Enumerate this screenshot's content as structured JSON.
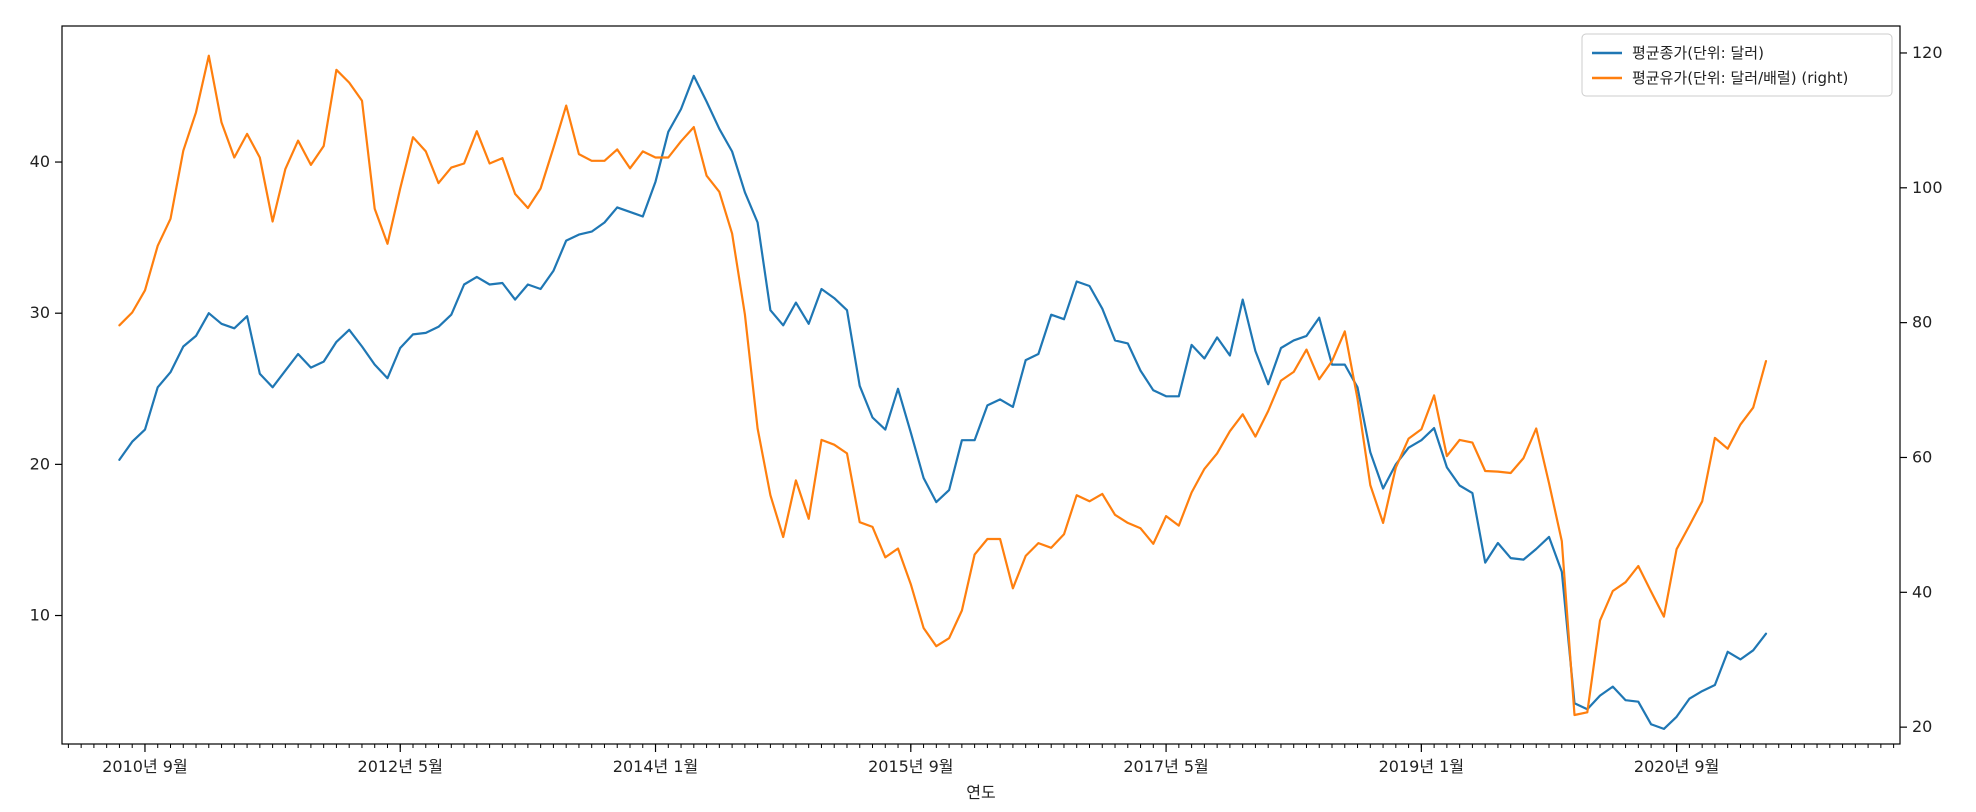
{
  "chart_data": {
    "type": "line",
    "title": "",
    "xlabel": "연도",
    "ylabel_left": "",
    "ylabel_right": "",
    "x_tick_labels": [
      "2010년 9월",
      "2012년 5월",
      "2014년 1월",
      "2015년 9월",
      "2017년 5월",
      "2019년 1월",
      "2020년 9월"
    ],
    "x_tick_periods": [
      2,
      22,
      42,
      62,
      82,
      102,
      122
    ],
    "x_start": "2010년 7월",
    "x_range": [
      -4.5,
      139.5
    ],
    "ylim_left": [
      1.5,
      49.0
    ],
    "ylim_right": [
      17.5,
      124.0
    ],
    "yticks_left": [
      10,
      20,
      30,
      40
    ],
    "yticks_right": [
      20,
      40,
      60,
      80,
      100,
      120
    ],
    "grid": false,
    "legend_position": "top-right",
    "series": [
      {
        "name": "평균종가(단위: 달러)",
        "axis": "left",
        "color": "#1f77b4",
        "values": [
          20.3,
          21.5,
          22.3,
          25.1,
          26.1,
          27.8,
          28.5,
          30.0,
          29.3,
          29.0,
          29.8,
          26.0,
          25.1,
          26.2,
          27.3,
          26.4,
          26.8,
          28.1,
          28.9,
          27.8,
          26.6,
          25.7,
          27.7,
          28.6,
          28.7,
          29.1,
          29.9,
          31.9,
          32.4,
          31.9,
          32.0,
          30.9,
          31.9,
          31.6,
          32.8,
          34.8,
          35.2,
          35.4,
          36.0,
          37.0,
          36.7,
          36.4,
          38.7,
          42.0,
          43.5,
          45.7,
          44.0,
          42.2,
          40.7,
          38.0,
          36.0,
          30.2,
          29.2,
          30.7,
          29.3,
          31.6,
          31.0,
          30.2,
          25.2,
          23.1,
          22.3,
          25.0,
          22.1,
          19.1,
          17.5,
          18.3,
          21.6,
          21.6,
          23.9,
          24.3,
          23.8,
          26.9,
          27.3,
          29.9,
          29.6,
          32.1,
          31.8,
          30.3,
          28.2,
          28.0,
          26.2,
          24.9,
          24.5,
          24.5,
          27.9,
          27.0,
          28.4,
          27.2,
          30.9,
          27.5,
          25.3,
          27.7,
          28.2,
          28.5,
          29.7,
          26.6,
          26.6,
          25.1,
          20.8,
          18.4,
          20.0,
          21.1,
          21.6,
          22.4,
          19.8,
          18.6,
          18.1,
          13.5,
          14.8,
          13.8,
          13.7,
          14.4,
          15.2,
          12.9,
          4.2,
          3.8,
          4.7,
          5.3,
          4.4,
          4.3,
          2.8,
          2.5,
          3.3,
          4.5,
          5.0,
          5.4,
          7.6,
          7.1,
          7.7,
          8.8
        ]
      },
      {
        "name": "평균유가(단위: 달러/배럴) (right)",
        "axis": "right",
        "color": "#ff7f0e",
        "values": [
          79.6,
          81.5,
          84.8,
          91.4,
          95.4,
          105.5,
          111.2,
          119.6,
          109.7,
          104.5,
          108.0,
          104.5,
          95.0,
          102.8,
          107.0,
          103.4,
          106.2,
          117.5,
          115.6,
          112.9,
          96.9,
          91.7,
          99.9,
          107.5,
          105.4,
          100.7,
          103.0,
          103.6,
          108.4,
          103.6,
          104.4,
          99.1,
          97.0,
          99.9,
          105.9,
          112.2,
          105.0,
          104.0,
          104.0,
          105.7,
          102.9,
          105.4,
          104.5,
          104.5,
          106.9,
          109.0,
          101.8,
          99.4,
          93.2,
          81.2,
          64.3,
          54.4,
          48.2,
          56.6,
          50.9,
          62.6,
          61.9,
          60.6,
          50.4,
          49.7,
          45.2,
          46.5,
          41.2,
          34.7,
          32.0,
          33.2,
          37.3,
          45.6,
          47.9,
          47.9,
          40.6,
          45.4,
          47.3,
          46.6,
          48.6,
          54.4,
          53.5,
          54.6,
          51.5,
          50.3,
          49.5,
          47.2,
          51.3,
          49.9,
          54.8,
          58.3,
          60.6,
          63.9,
          66.4,
          63.1,
          66.9,
          71.4,
          72.7,
          76.0,
          71.6,
          74.3,
          78.7,
          68.7,
          55.9,
          50.3,
          58.5,
          62.8,
          64.2,
          69.2,
          60.2,
          62.6,
          62.2,
          58.0,
          57.9,
          57.7,
          59.9,
          64.3,
          56.2,
          47.6,
          21.8,
          22.2,
          35.8,
          40.2,
          41.5,
          43.9,
          40.1,
          36.4,
          46.4,
          49.9,
          53.5,
          62.9,
          61.3,
          64.9,
          67.4,
          74.3
        ]
      }
    ]
  }
}
